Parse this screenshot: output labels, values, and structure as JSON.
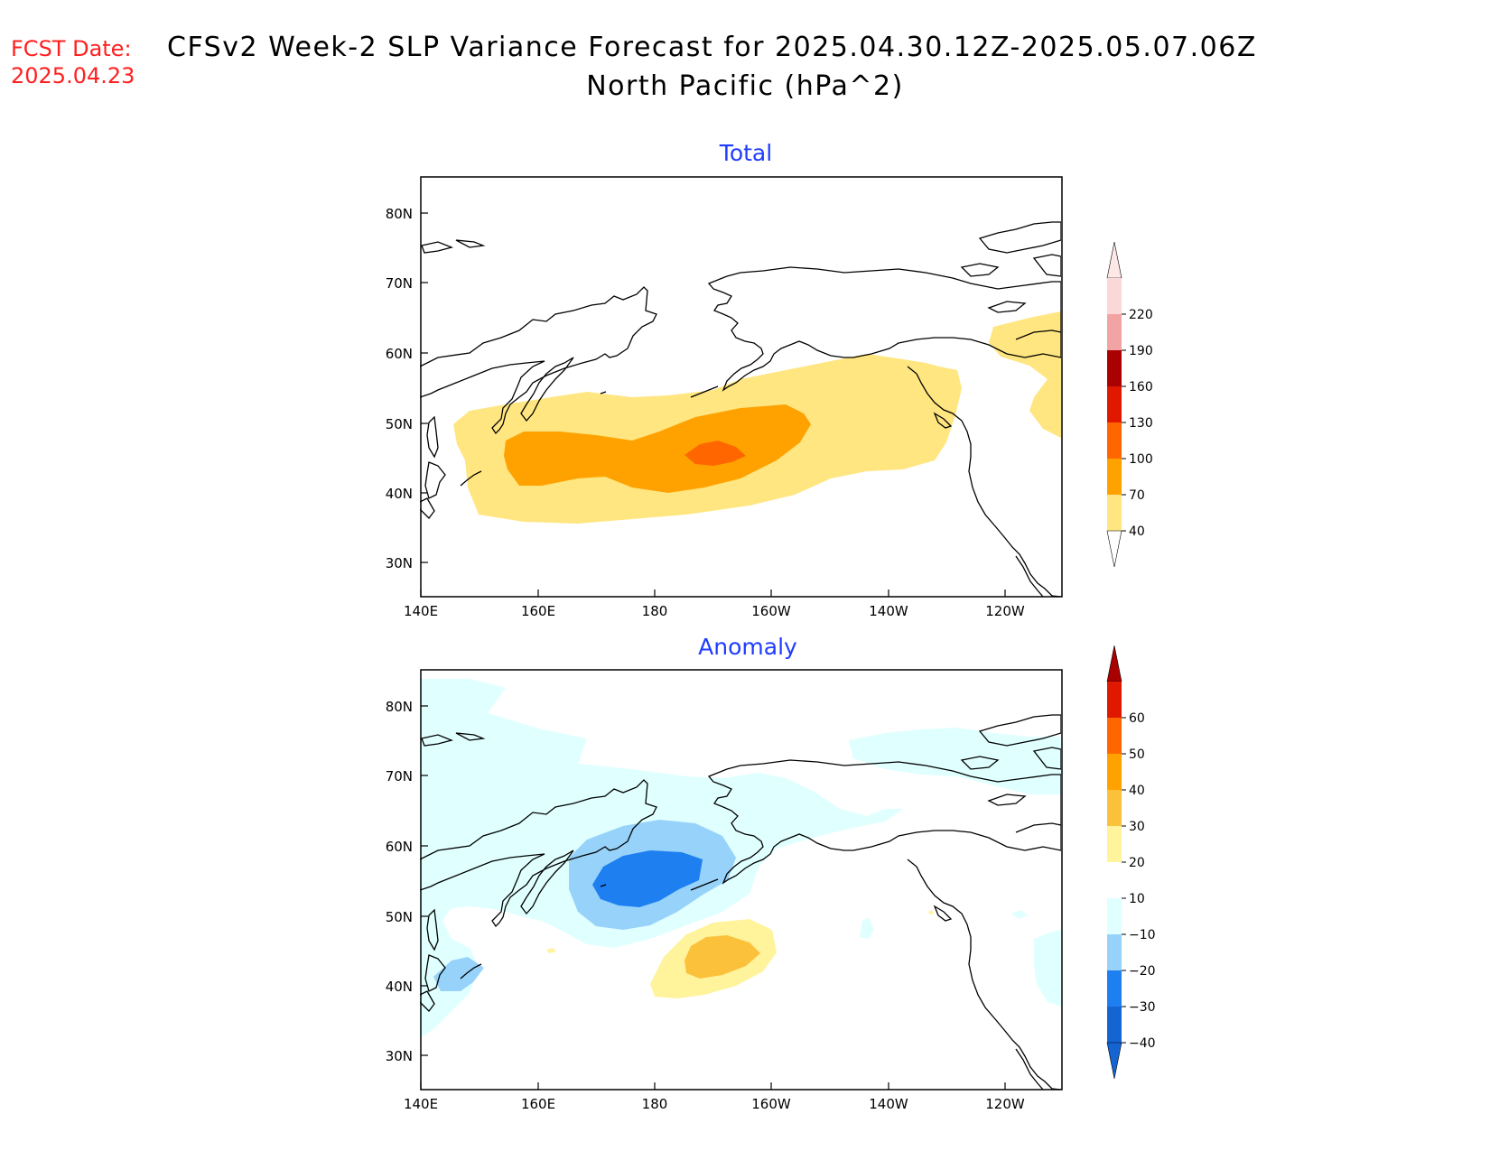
{
  "header": {
    "fcst_label": "FCST Date:",
    "fcst_date": "2025.04.23",
    "title_line1": "CFSv2 Week-2 SLP Variance Forecast for 2025.04.30.12Z-2025.05.07.06Z",
    "title_line2": "North Pacific (hPa^2)",
    "fcst_color": "#ff2020",
    "panel_title_color": "#1f3cff"
  },
  "axes": {
    "lat_labels": [
      "80N",
      "70N",
      "60N",
      "50N",
      "40N",
      "30N"
    ],
    "lon_labels": [
      "140E",
      "160E",
      "180",
      "160W",
      "140W",
      "120W"
    ]
  },
  "panels": [
    {
      "title": "Total",
      "colorbar": {
        "labels": [
          "220",
          "190",
          "160",
          "130",
          "100",
          "70",
          "40"
        ],
        "colors": [
          "#fbd8d8",
          "#f2a3a3",
          "#a90000",
          "#e11800",
          "#ff6600",
          "#ffa200",
          "#ffe680"
        ],
        "arrow_top_color": "#fde7e7",
        "arrow_bottom_color": "#ffffff"
      },
      "field_colors": {
        "low": "#ffe680",
        "mid": "#ffa200",
        "high": "#ff6600"
      }
    },
    {
      "title": "Anomaly",
      "colorbar": {
        "labels": [
          "60",
          "50",
          "40",
          "30",
          "20",
          "10",
          "−10",
          "−20",
          "−30",
          "−40"
        ],
        "colors": [
          "#e11800",
          "#ff6600",
          "#ffa200",
          "#fcc13a",
          "#fff39c",
          "#ffffff",
          "#e0ffff",
          "#96d2fa",
          "#1e80f0",
          "#1464d2"
        ],
        "arrow_top_color": "#a90000",
        "arrow_bottom_color": "#1464d2"
      },
      "field_colors": {
        "pos1": "#fff39c",
        "pos2": "#fcc13a",
        "neg1": "#e0ffff",
        "neg2": "#96d2fa",
        "neg3": "#1e80f0"
      }
    }
  ]
}
